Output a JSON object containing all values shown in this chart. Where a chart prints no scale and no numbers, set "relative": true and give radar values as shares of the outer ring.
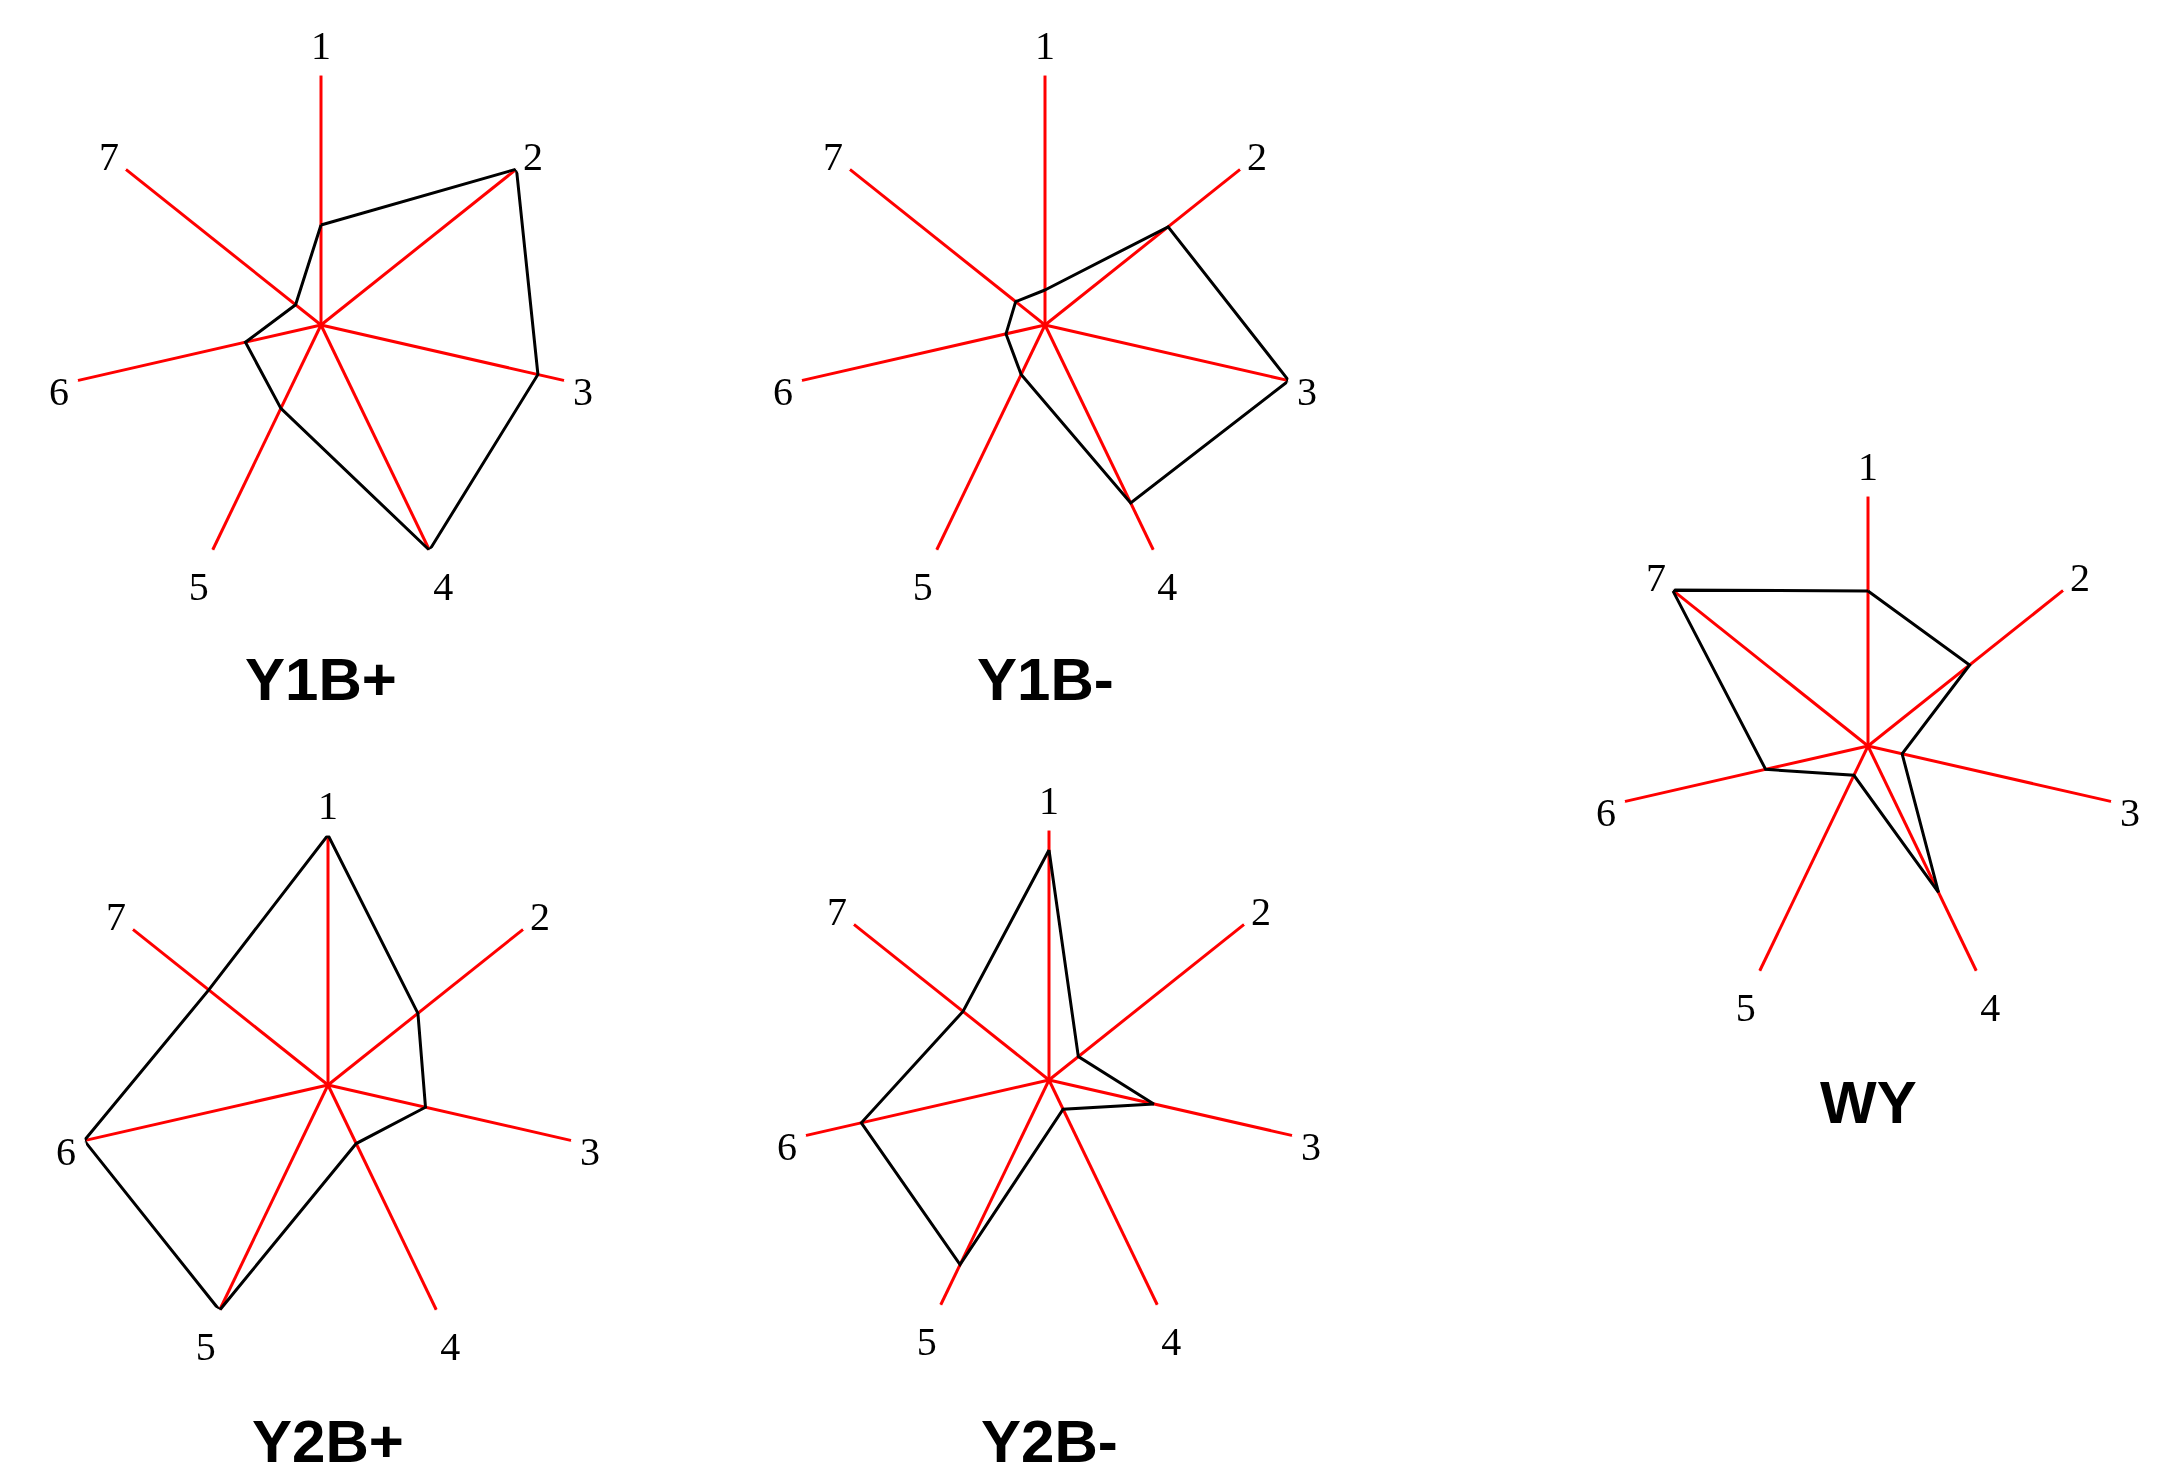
{
  "chart_data": [
    {
      "type": "radar",
      "title": "Y1B+",
      "categories": [
        "1",
        "2",
        "3",
        "4",
        "5",
        "6",
        "7"
      ],
      "relative": true,
      "grid": true,
      "series": [
        {
          "color": "#000000",
          "values": [
            0.4,
            1.0,
            0.89,
            1.0,
            0.37,
            0.31,
            0.13
          ]
        }
      ]
    },
    {
      "type": "radar",
      "title": "Y1B-",
      "categories": [
        "1",
        "2",
        "3",
        "4",
        "5",
        "6",
        "7"
      ],
      "relative": true,
      "grid": true,
      "series": [
        {
          "color": "#000000",
          "values": [
            0.14,
            0.63,
            1.0,
            0.79,
            0.22,
            0.16,
            0.15
          ]
        }
      ]
    },
    {
      "type": "radar",
      "title": "Y2B+",
      "categories": [
        "1",
        "2",
        "3",
        "4",
        "5",
        "6",
        "7"
      ],
      "relative": true,
      "grid": true,
      "series": [
        {
          "color": "#000000",
          "values": [
            1.0,
            0.46,
            0.4,
            0.26,
            1.0,
            1.0,
            0.61
          ]
        }
      ]
    },
    {
      "type": "radar",
      "title": "Y2B-",
      "categories": [
        "1",
        "2",
        "3",
        "4",
        "5",
        "6",
        "7"
      ],
      "relative": true,
      "grid": true,
      "series": [
        {
          "color": "#000000",
          "values": [
            0.92,
            0.15,
            0.43,
            0.13,
            0.82,
            0.77,
            0.44
          ]
        }
      ]
    },
    {
      "type": "radar",
      "title": "WY",
      "categories": [
        "1",
        "2",
        "3",
        "4",
        "5",
        "6",
        "7"
      ],
      "relative": true,
      "grid": true,
      "series": [
        {
          "color": "#000000",
          "values": [
            0.62,
            0.52,
            0.14,
            0.65,
            0.13,
            0.42,
            1.0
          ]
        }
      ]
    }
  ]
}
